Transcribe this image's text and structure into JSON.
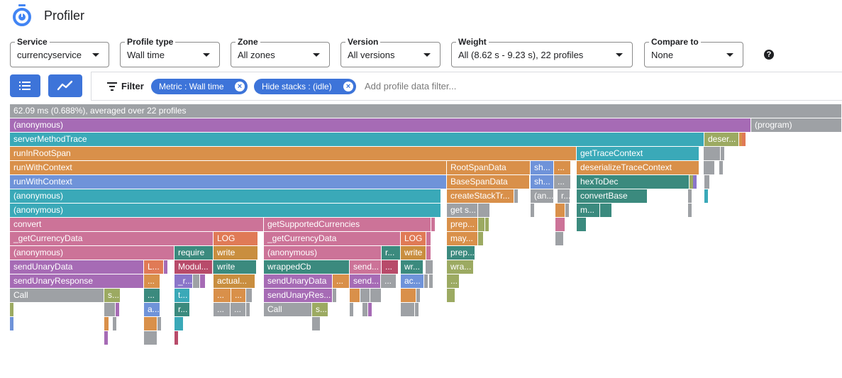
{
  "app": {
    "title": "Profiler",
    "logo_icon": "profiler-stopwatch-icon"
  },
  "controls": [
    {
      "label": "Service",
      "value": "currencyservice"
    },
    {
      "label": "Profile type",
      "value": "Wall time"
    },
    {
      "label": "Zone",
      "value": "All zones"
    },
    {
      "label": "Version",
      "value": "All versions"
    },
    {
      "label": "Weight",
      "value": "All (8.62 s - 9.23 s), 22 profiles"
    },
    {
      "label": "Compare to",
      "value": "None"
    }
  ],
  "help_glyph": "?",
  "view_buttons": [
    {
      "name": "list-view-icon"
    },
    {
      "name": "trend-view-icon"
    }
  ],
  "filter": {
    "label": "Filter",
    "chips": [
      {
        "text": "Metric : Wall time"
      },
      {
        "text": "Hide stacks : (idle)"
      }
    ],
    "placeholder": "Add profile data filter..."
  },
  "colors": {
    "accent": "#3d74d9",
    "gray": "#9ea1a5",
    "purple": "#a66bb5",
    "teal": "#3aa9b8",
    "orange": "#d9904a",
    "blue": "#6f93d9",
    "pink": "#cc7398",
    "darkgreen": "#3b8a7e",
    "olive": "#9caa62",
    "red": "#b84b6a",
    "salmon": "#e07a56",
    "brown": "#c98e3f",
    "violet": "#8a75c9"
  },
  "flame": {
    "summary": "62.09 ms (0.688%), averaged over 22 profiles",
    "labels": {
      "anonymous": "(anonymous)",
      "program": "(program)",
      "server_method_trace": "serverMethodTrace",
      "deser_trunc": "deser...",
      "run_in_root_span": "runInRootSpan",
      "get_trace_context": "getTraceContext",
      "run_with_context": "runWithContext",
      "root_span_data": "RootSpanData",
      "sh_trunc": "sh...",
      "deserialize_trace_context": "deserializeTraceContext",
      "base_span_data": "BaseSpanData",
      "hex_to_dec": "hexToDec",
      "create_stack_tr": "createStackTr...",
      "an_trunc": "(an...",
      "r_trunc": "r...",
      "convert_base": "convertBase",
      "get_s_trunc": "get s...",
      "m_trunc": "m...",
      "convert": "convert",
      "get_supported_currencies": "getSupportedCurrencies",
      "prep_trunc": "prep...",
      "get_currency_data": "_getCurrencyData",
      "log": "LOG",
      "may_trunc": "may...",
      "require": "require",
      "write": "write",
      "send_unary_data": "sendUnaryData",
      "l_trunc": "L...",
      "modul_trunc": "Modul...",
      "wrapped_cb": "wrappedCb",
      "send_trunc": "send...",
      "wr_trunc": "wr...",
      "wra_trunc": "wra...",
      "send_unary_response": "sendUnaryResponse",
      "dots": "...",
      "underscore_r": "_r...",
      "actual_trunc": "actual...",
      "ac_trunc": "ac...",
      "call": "Call",
      "s_trunc": "s...",
      "t_trunc": "t...",
      "send_unary_res_trunc": "sendUnaryRes...",
      "a_trunc": "a..."
    }
  }
}
